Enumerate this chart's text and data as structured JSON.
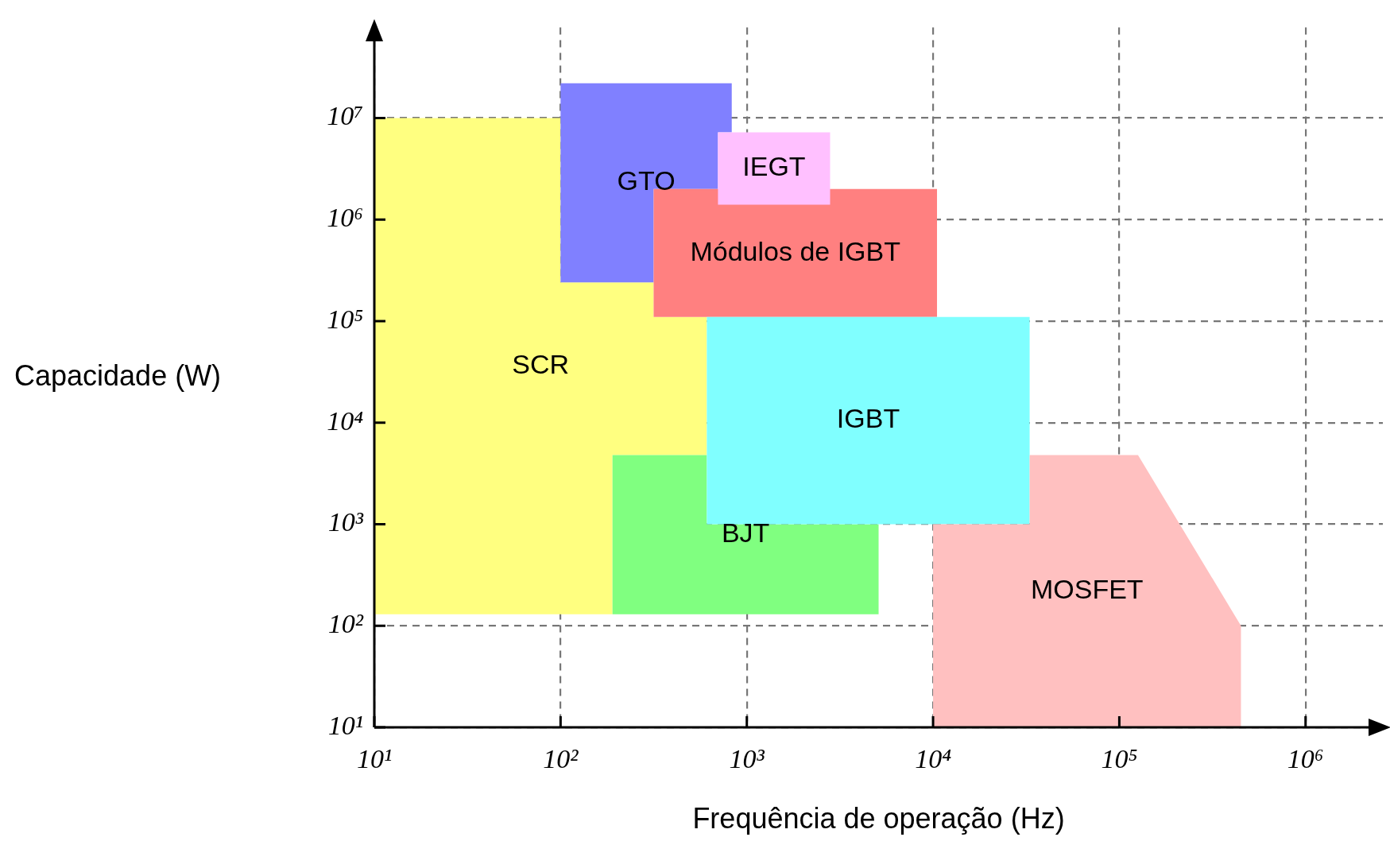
{
  "chart_data": {
    "type": "area",
    "xlabel": "Frequência de operação (Hz)",
    "ylabel": "Capacidade (W)",
    "log": "xy",
    "grid": true,
    "line_style": "dashed",
    "legend": false,
    "xlim": [
      10,
      2600000
    ],
    "ylim": [
      10,
      78000000
    ],
    "xticks": [
      {
        "value": 10,
        "label": "10¹"
      },
      {
        "value": 100,
        "label": "10²"
      },
      {
        "value": 1000,
        "label": "10³"
      },
      {
        "value": 10000,
        "label": "10⁴"
      },
      {
        "value": 100000,
        "label": "10⁵"
      },
      {
        "value": 1000000,
        "label": "10⁶"
      }
    ],
    "yticks": [
      {
        "value": 10,
        "label": "10¹"
      },
      {
        "value": 100,
        "label": "10²"
      },
      {
        "value": 1000,
        "label": "10³"
      },
      {
        "value": 10000,
        "label": "10⁴"
      },
      {
        "value": 100000,
        "label": "10⁵"
      },
      {
        "value": 1000000,
        "label": "10⁶"
      },
      {
        "value": 10000000,
        "label": "10⁷"
      }
    ],
    "series": [
      {
        "name": "SCR",
        "color": "#ffff80",
        "x": [
          10,
          190,
          190,
          610,
          610,
          316,
          316,
          100,
          100,
          10
        ],
        "values": [
          130,
          130,
          4800,
          4800,
          110000,
          110000,
          240000,
          240000,
          10000000,
          10000000
        ]
      },
      {
        "name": "GTO",
        "color": "#8080ff",
        "x": [
          100,
          316,
          316,
          700,
          700,
          830,
          830,
          100
        ],
        "values": [
          240000,
          240000,
          2000000,
          2000000,
          7200000,
          7200000,
          22000000,
          22000000
        ]
      },
      {
        "name": "Módulos de IGBT",
        "color": "#ff8080",
        "x": [
          316,
          10500,
          10500,
          316
        ],
        "values": [
          110000,
          110000,
          2000000,
          2000000
        ]
      },
      {
        "name": "IEGT",
        "color": "#ffc0ff",
        "x": [
          700,
          2800,
          2800,
          700
        ],
        "values": [
          1400000,
          1400000,
          7200000,
          7200000
        ]
      },
      {
        "name": "BJT",
        "color": "#80ff80",
        "x": [
          190,
          5100,
          5100,
          610,
          610,
          190
        ],
        "values": [
          130,
          130,
          1000,
          1000,
          4800,
          4800
        ]
      },
      {
        "name": "IGBT",
        "color": "#80ffff",
        "x": [
          610,
          33000,
          33000,
          610
        ],
        "values": [
          1000,
          1000,
          110000,
          110000
        ]
      },
      {
        "name": "MOSFET",
        "color": "#ffc0c0",
        "x": [
          10000,
          450000,
          450000,
          126000,
          33000,
          33000,
          10000
        ],
        "values": [
          10,
          10,
          100,
          4800,
          4800,
          1000,
          1000
        ]
      }
    ]
  }
}
